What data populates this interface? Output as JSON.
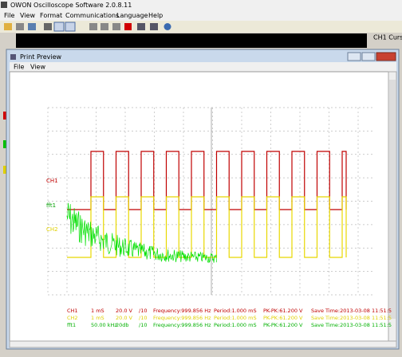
{
  "app": {
    "title": "OWON Oscilloscope Software 2.0.8.11",
    "menu": [
      "File",
      "View",
      "Format",
      "Communications",
      "Language",
      "Help"
    ],
    "side_label": "CH1 Curs"
  },
  "preview": {
    "title": "Print Preview",
    "menu": [
      "File",
      "View"
    ],
    "channel_labels": [
      "CH1",
      "fft1",
      "CH2"
    ],
    "info_rows": [
      [
        "CH1",
        "1 mS",
        "20.0 V",
        "/10",
        "Frequency:999.856 Hz",
        "Period:1.000 mS",
        "PK-PK:61.200 V",
        "Save Time:2013-03-08 11:51:5"
      ],
      [
        "CH2",
        "1 mS",
        "20.0 V",
        "/10",
        "Frequency:999.856 Hz",
        "Period:1.000 mS",
        "PK-PK:61.200 V",
        "Save Time:2013-03-08 11:51:5"
      ],
      [
        "fft1",
        "50.00 kHz",
        "20db",
        "/10",
        "Frequency:999.856 Hz",
        "Period:1.000 mS",
        "PK-PK:61.200 V",
        "Save Time:2013-03-08 11:51:5"
      ]
    ]
  }
}
